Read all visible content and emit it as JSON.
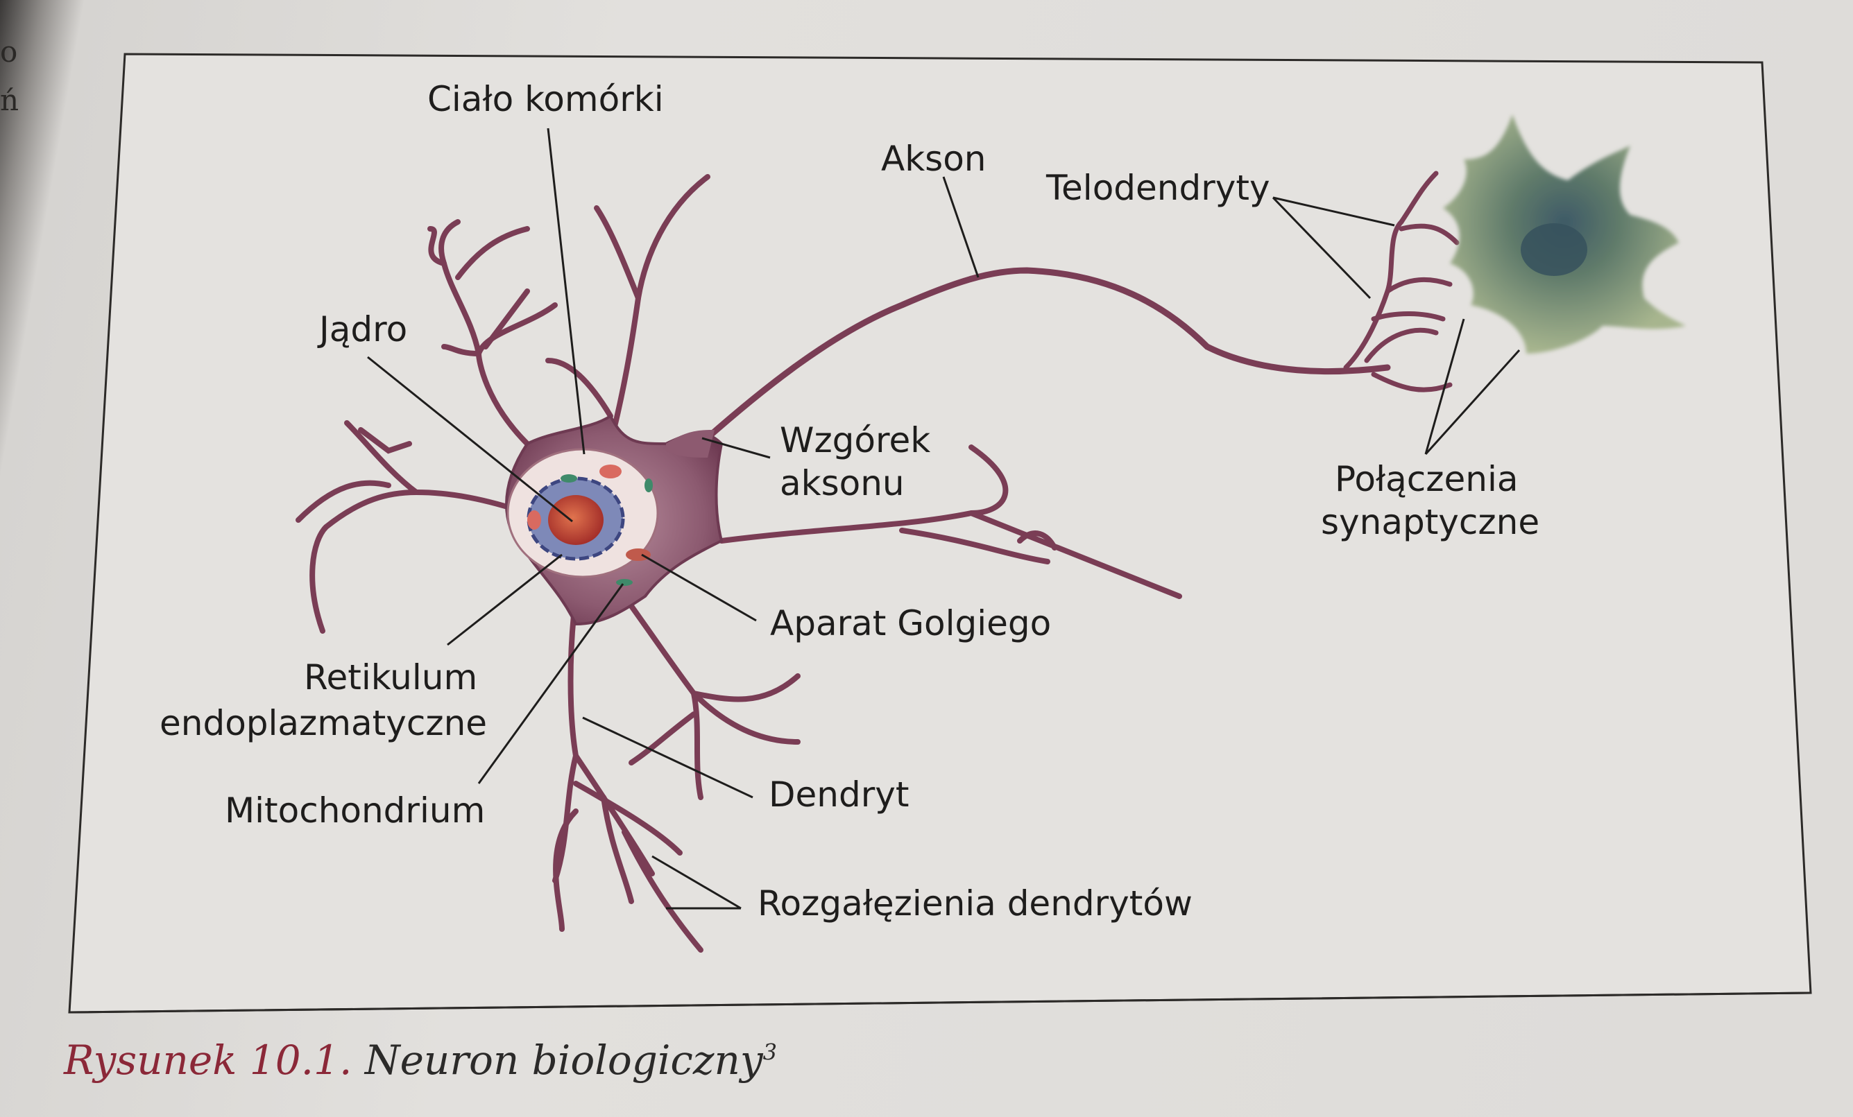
{
  "margin_text": [
    "o",
    "ń"
  ],
  "labels": {
    "cialo_komorki": "Ciało komórki",
    "akson": "Akson",
    "telodendryty": "Telodendryty",
    "jadro": "Jądro",
    "wzgorek_line1": "Wzgórek",
    "wzgorek_line2": "aksonu",
    "polaczenia_line1": "Połączenia",
    "polaczenia_line2": "synaptyczne",
    "aparat_golgiego": "Aparat Golgiego",
    "retikulum_line1": "Retikulum",
    "retikulum_line2": "endoplazmatyczne",
    "mitochondrium": "Mitochondrium",
    "dendryt": "Dendryt",
    "rozgalezienia": "Rozgałęzienia dendrytów"
  },
  "caption": {
    "prefix": "Rysunek 10.1.",
    "title": "Neuron biologiczny",
    "footnote": "3"
  },
  "colors": {
    "neuron_membrane": "#7a3a52",
    "neuron_fill": "#9a6478",
    "nucleus": "#c8503c",
    "target_cell": "#5d7468",
    "caption_prefix": "#8b2838"
  }
}
